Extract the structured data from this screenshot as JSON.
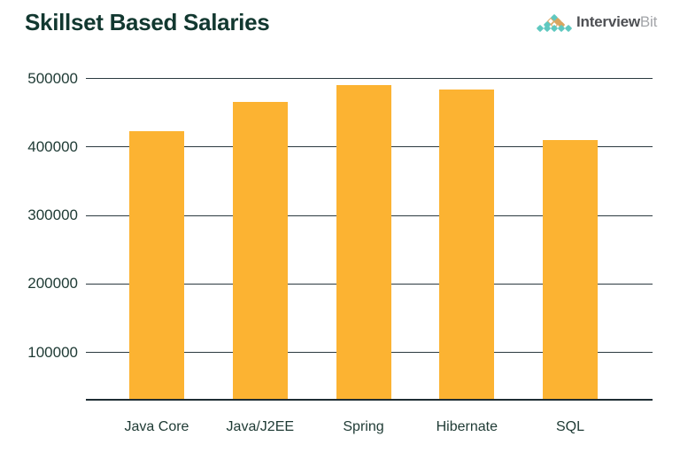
{
  "header": {
    "title": "Skillset Based Salaries",
    "logo": {
      "brand_primary": "Interview",
      "brand_secondary": "Bit"
    }
  },
  "theme": {
    "background": "#FFFFFF",
    "bar_color": "#FCB332",
    "title_color": "#123830",
    "axis_label_color": "#1E3A34",
    "gridline_color": "#2C3A40",
    "axis_line_color": "#1F2D33",
    "logo_teal": "#5FC8C0",
    "logo_gold": "#D9A55F",
    "logo_white": "#FFFFFF",
    "logo_text_primary_color": "#4E5054",
    "logo_text_secondary_color": "#A3A5A9"
  },
  "chart_data": {
    "type": "bar",
    "title": "Skillset Based Salaries",
    "categories": [
      "Java Core",
      "Java/J2EE",
      "Spring",
      "Hibernate",
      "SQL"
    ],
    "values": [
      423000,
      465000,
      490000,
      483000,
      409000
    ],
    "xlabel": "",
    "ylabel": "",
    "yticks": [
      100000,
      200000,
      300000,
      400000,
      500000
    ],
    "ylim": [
      31000,
      500000
    ],
    "gridlines": true,
    "legend": false,
    "bar_color": "#FCB332"
  }
}
